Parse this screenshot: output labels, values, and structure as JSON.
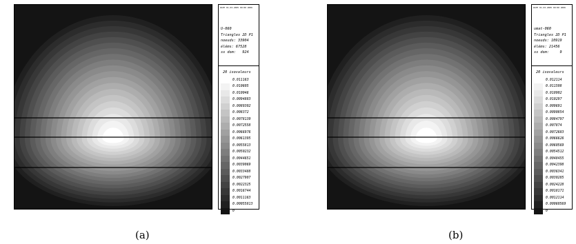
{
  "figures": [
    {
      "caption": "(a)",
      "header": "DATE 01-03-2005 00:00 2006",
      "meta": [
        "U-060",
        "Triangles 2D P1",
        "noeuds: 33904",
        "éléms: 67528",
        "ss dom:   924"
      ],
      "legend_title": "20 isovaleurs",
      "levels": [
        "0.011163",
        "0.010605",
        "0.010046",
        "0.0094883",
        "0.0089302",
        "0.008372",
        "0.0078139",
        "0.0072558",
        "0.0066976",
        "0.0061395",
        "0.0055813",
        "0.0050232",
        "0.0044651",
        "0.0039069",
        "0.0033488",
        "0.0027907",
        "0.0022325",
        "0.0016744",
        "0.0011163",
        "0.00055813",
        "0"
      ]
    },
    {
      "caption": "(b)",
      "header": "DATE 01-03-2005 00:00 2006",
      "meta": [
        "umat-060",
        "Triangles 2D P1",
        "noeuds: 10919",
        "éléms: 21456",
        "ss dom:     9"
      ],
      "legend_title": "20 isovaleurs",
      "levels": [
        "0.012114",
        "0.011508",
        "0.010902",
        "0.010297",
        "0.009691",
        "0.0090854",
        "0.0084797",
        "0.007874",
        "0.0072683",
        "0.0066626",
        "0.0060569",
        "0.0054512",
        "0.0048455",
        "0.0042398",
        "0.0036341",
        "0.0030285",
        "0.0024228",
        "0.0018171",
        "0.0012114",
        "0.00060569",
        "0"
      ]
    }
  ]
}
